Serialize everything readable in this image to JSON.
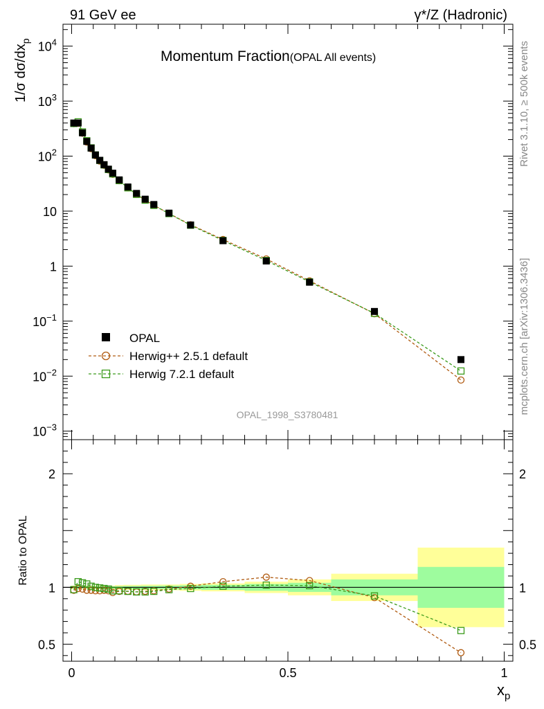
{
  "header": {
    "left": "91 GeV ee",
    "right": "γ*/Z (Hadronic)"
  },
  "side_labels": {
    "rivet": "Rivet 3.1.10, ≥ 500k events",
    "mcplots": "mcplots.cern.ch [arXiv:1306.3436]"
  },
  "chart_data": {
    "type": "line",
    "title": "Momentum Fraction",
    "subtitle": "(OPAL All events)",
    "watermark": "OPAL_1998_S3780481",
    "xlabel_main": "x",
    "xlabel_sub": "p",
    "ylabel": "1/σ dσ/dx",
    "ylabel_sub": "p",
    "ratio_ylabel": "Ratio to OPAL",
    "xlim": [
      -0.02,
      1.02
    ],
    "ylim_log": [
      0.0007,
      25000
    ],
    "ratio_ylim": [
      0.35,
      2.3
    ],
    "x_ticks": [
      "0",
      "0.5",
      "1"
    ],
    "y_ticks": [
      {
        "v": 0.001,
        "base": "10",
        "exp": "−3"
      },
      {
        "v": 0.01,
        "base": "10",
        "exp": "−2"
      },
      {
        "v": 0.1,
        "base": "10",
        "exp": "−1"
      },
      {
        "v": 1,
        "base": "1",
        "exp": ""
      },
      {
        "v": 10,
        "base": "10",
        "exp": ""
      },
      {
        "v": 100,
        "base": "10",
        "exp": "2"
      },
      {
        "v": 1000,
        "base": "10",
        "exp": "3"
      },
      {
        "v": 10000,
        "base": "10",
        "exp": "4"
      }
    ],
    "ratio_ticks": [
      "0.5",
      "1",
      "2"
    ],
    "x": [
      0.005,
      0.015,
      0.025,
      0.035,
      0.045,
      0.055,
      0.065,
      0.075,
      0.085,
      0.095,
      0.11,
      0.13,
      0.15,
      0.17,
      0.19,
      0.225,
      0.275,
      0.35,
      0.45,
      0.55,
      0.7,
      0.9
    ],
    "bin_edges": [
      0.0,
      0.01,
      0.02,
      0.03,
      0.04,
      0.05,
      0.06,
      0.07,
      0.08,
      0.09,
      0.1,
      0.12,
      0.14,
      0.16,
      0.18,
      0.2,
      0.25,
      0.3,
      0.4,
      0.5,
      0.6,
      0.8,
      1.0
    ],
    "legend": [
      "OPAL",
      "Herwig++ 2.5.1 default",
      "Herwig 7.2.1 default"
    ],
    "series": [
      {
        "name": "OPAL",
        "marker": "square-filled",
        "color": "#000000",
        "values": [
          400,
          400,
          265,
          185,
          140,
          105,
          84,
          70,
          58,
          49,
          37,
          27.5,
          21,
          16.5,
          13.2,
          9.2,
          5.6,
          2.9,
          1.24,
          0.51,
          0.15,
          0.02
        ]
      },
      {
        "name": "Herwig++ 2.5.1 default",
        "marker": "circle-open",
        "color": "#b05a10",
        "ratio": [
          0.975,
          0.99,
          0.985,
          0.975,
          0.975,
          0.97,
          0.97,
          0.975,
          0.97,
          0.955,
          0.965,
          0.965,
          0.96,
          0.965,
          0.97,
          0.985,
          1.01,
          1.05,
          1.09,
          1.06,
          0.91,
          0.425
        ]
      },
      {
        "name": "Herwig 7.2.1 default",
        "marker": "square-open",
        "color": "#3a9a1a",
        "ratio": [
          0.98,
          1.05,
          1.04,
          1.03,
          1.01,
          1.0,
          0.995,
          0.99,
          0.985,
          0.97,
          0.97,
          0.965,
          0.96,
          0.96,
          0.965,
          0.98,
          0.99,
          1.01,
          1.02,
          1.015,
          0.925,
          0.62
        ]
      }
    ],
    "ratio_band_inner": [
      0.01,
      0.01,
      0.01,
      0.01,
      0.01,
      0.01,
      0.01,
      0.01,
      0.01,
      0.01,
      0.01,
      0.012,
      0.012,
      0.014,
      0.014,
      0.015,
      0.018,
      0.022,
      0.03,
      0.04,
      0.07,
      0.18
    ],
    "ratio_band_outer": [
      0.015,
      0.015,
      0.015,
      0.015,
      0.015,
      0.015,
      0.015,
      0.015,
      0.015,
      0.015,
      0.02,
      0.022,
      0.022,
      0.025,
      0.025,
      0.025,
      0.03,
      0.035,
      0.05,
      0.07,
      0.12,
      0.35
    ],
    "colors": {
      "band_inner": "#9efc9e",
      "band_outer": "#ffff99"
    }
  }
}
